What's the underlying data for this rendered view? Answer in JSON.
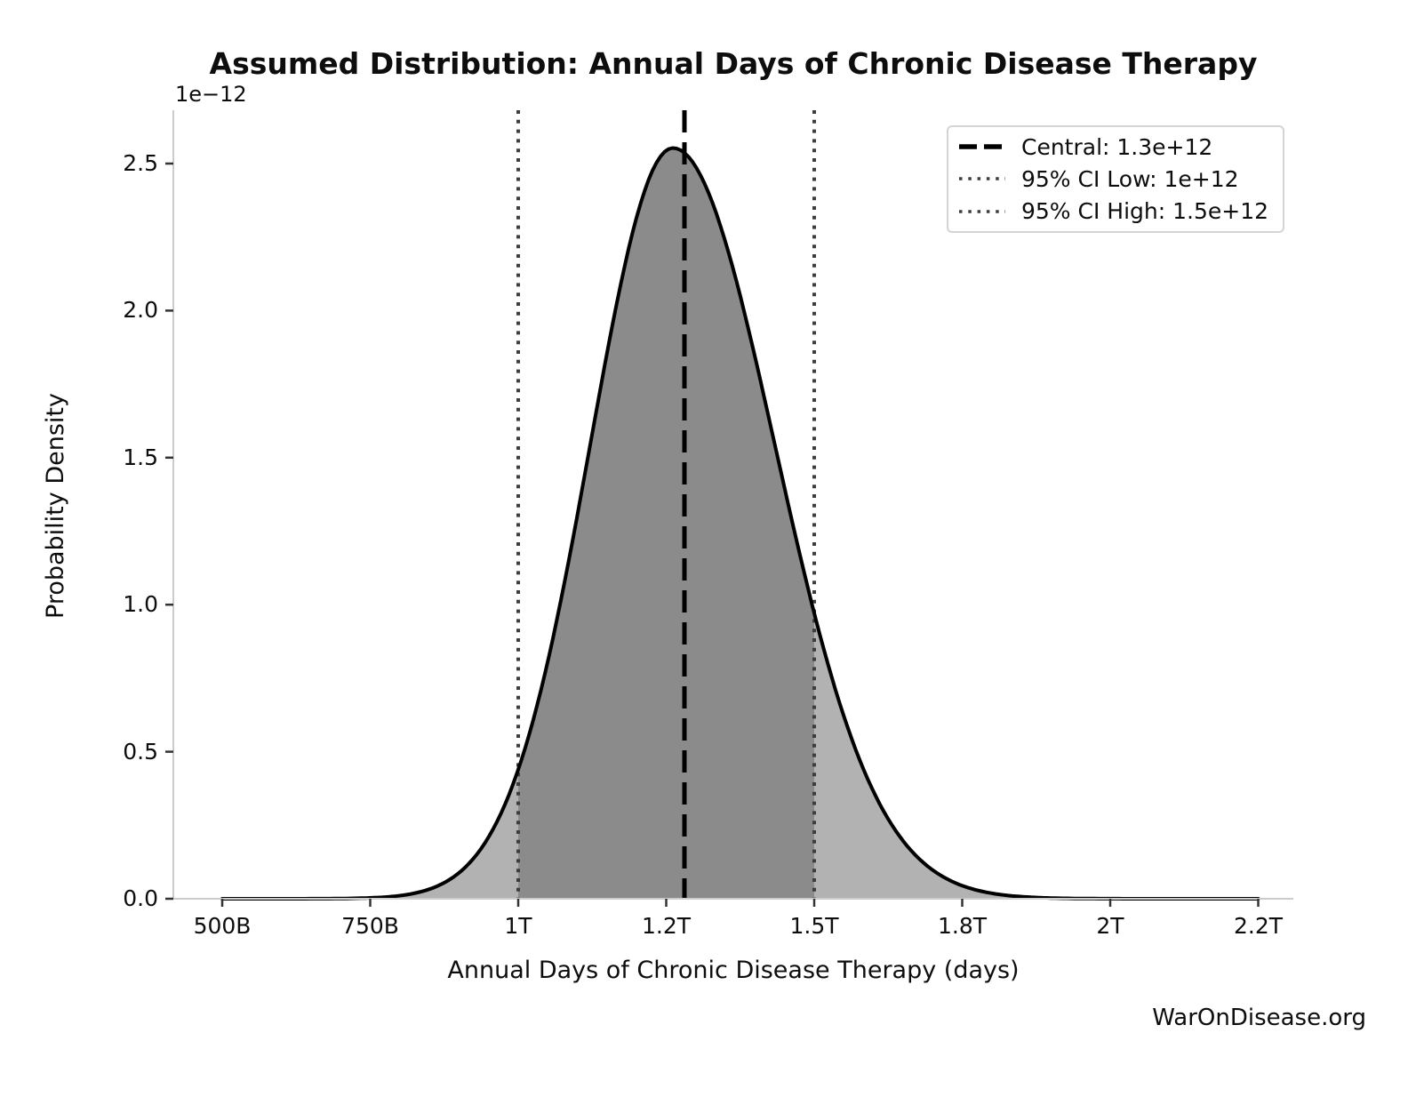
{
  "title": "Assumed Distribution: Annual Days of Chronic Disease Therapy",
  "axis_offset_label": "1e−12",
  "xlabel": "Annual Days of Chronic Disease Therapy (days)",
  "ylabel": "Probability Density",
  "watermark": "WarOnDisease.org",
  "legend": {
    "items": [
      {
        "label": "Central: 1.3e+12",
        "line_style": "dashed",
        "color": "#000000"
      },
      {
        "label": "95% CI Low: 1e+12",
        "line_style": "dotted",
        "color": "#3d3d3d"
      },
      {
        "label": "95% CI High: 1.5e+12",
        "line_style": "dotted",
        "color": "#3d3d3d"
      }
    ]
  },
  "chart_data": {
    "type": "area",
    "title": "Assumed Distribution: Annual Days of Chronic Disease Therapy",
    "xlabel": "Annual Days of Chronic Disease Therapy (days)",
    "ylabel": "Probability Density",
    "y_scale_note": "y tick values are multiples of 1e−12",
    "x_tick_labels": [
      "500B",
      "750B",
      "1T",
      "1.2T",
      "1.5T",
      "1.8T",
      "2T",
      "2.2T"
    ],
    "x_tick_values": [
      500000000000,
      750000000000,
      1000000000000,
      1200000000000,
      1500000000000,
      1800000000000,
      2000000000000,
      2200000000000
    ],
    "y_tick_labels": [
      "0.0",
      "0.5",
      "1.0",
      "1.5",
      "2.0",
      "2.5"
    ],
    "y_tick_values_e12": [
      0,
      0.5,
      1.0,
      1.5,
      2.0,
      2.5
    ],
    "ylim_e12": [
      0,
      2.68
    ],
    "central_value": 1300000000000.0,
    "ci_low_value": 1000000000000.0,
    "ci_high_value": 1500000000000.0,
    "peak_density_e12": 2.553,
    "density_at_ci_low_e12": 0.447,
    "density_at_ci_high_e12": 0.962,
    "curve_model": {
      "shape": "asymmetric_gaussian_in_tick_space",
      "mode_tick": 3.045,
      "sigma_left_tick": 0.557,
      "sigma_right_tick": 0.687,
      "tick_range": [
        0,
        7
      ]
    },
    "vline_ticks": {
      "central": 3.123,
      "ci_low": 2.0,
      "ci_high": 4.0
    },
    "legend_position": "upper right",
    "grid": false
  },
  "colors": {
    "fill_light": "#b2b2b2",
    "fill_dark": "#8b8b8b",
    "curve": "#000000",
    "central_line": "#000000",
    "ci_line": "#3d3d3d",
    "spine": "#cccccc",
    "tick": "#333333",
    "text": "#0d0d0d",
    "watermark": "#3a3a3a",
    "legend_border": "#d4d4d4"
  }
}
